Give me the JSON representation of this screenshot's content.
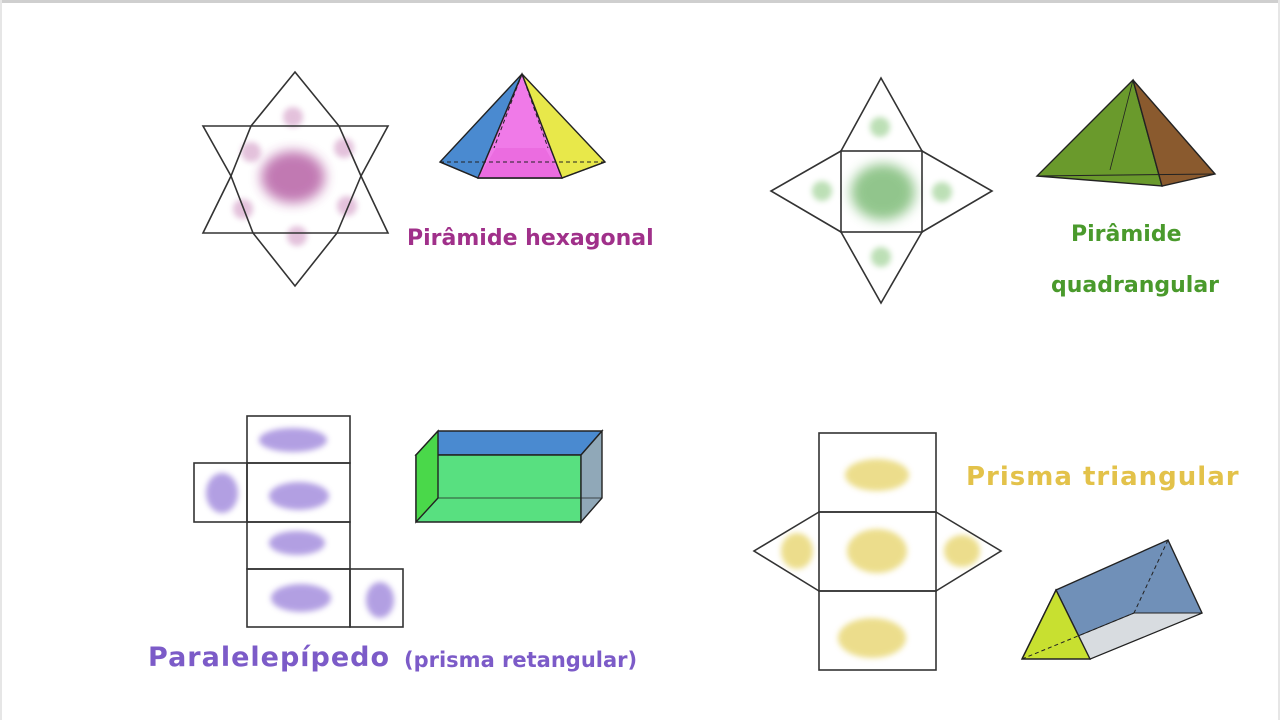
{
  "labels": {
    "hexagonal_pyramid": "Pirâmide hexagonal",
    "square_pyramid_line1": "Pirâmide",
    "square_pyramid_line2": "quadrangular",
    "parallelepiped": "Paralelepípedo",
    "parallelepiped_note": "(prisma retangular)",
    "triangular_prism": "Prisma triangular"
  },
  "colors": {
    "hexagonal": "#a0308a",
    "square_pyramid": "#4a9a2c",
    "parallelepiped": "#7c5bc8",
    "triangular_prism": "#e3c24a"
  }
}
